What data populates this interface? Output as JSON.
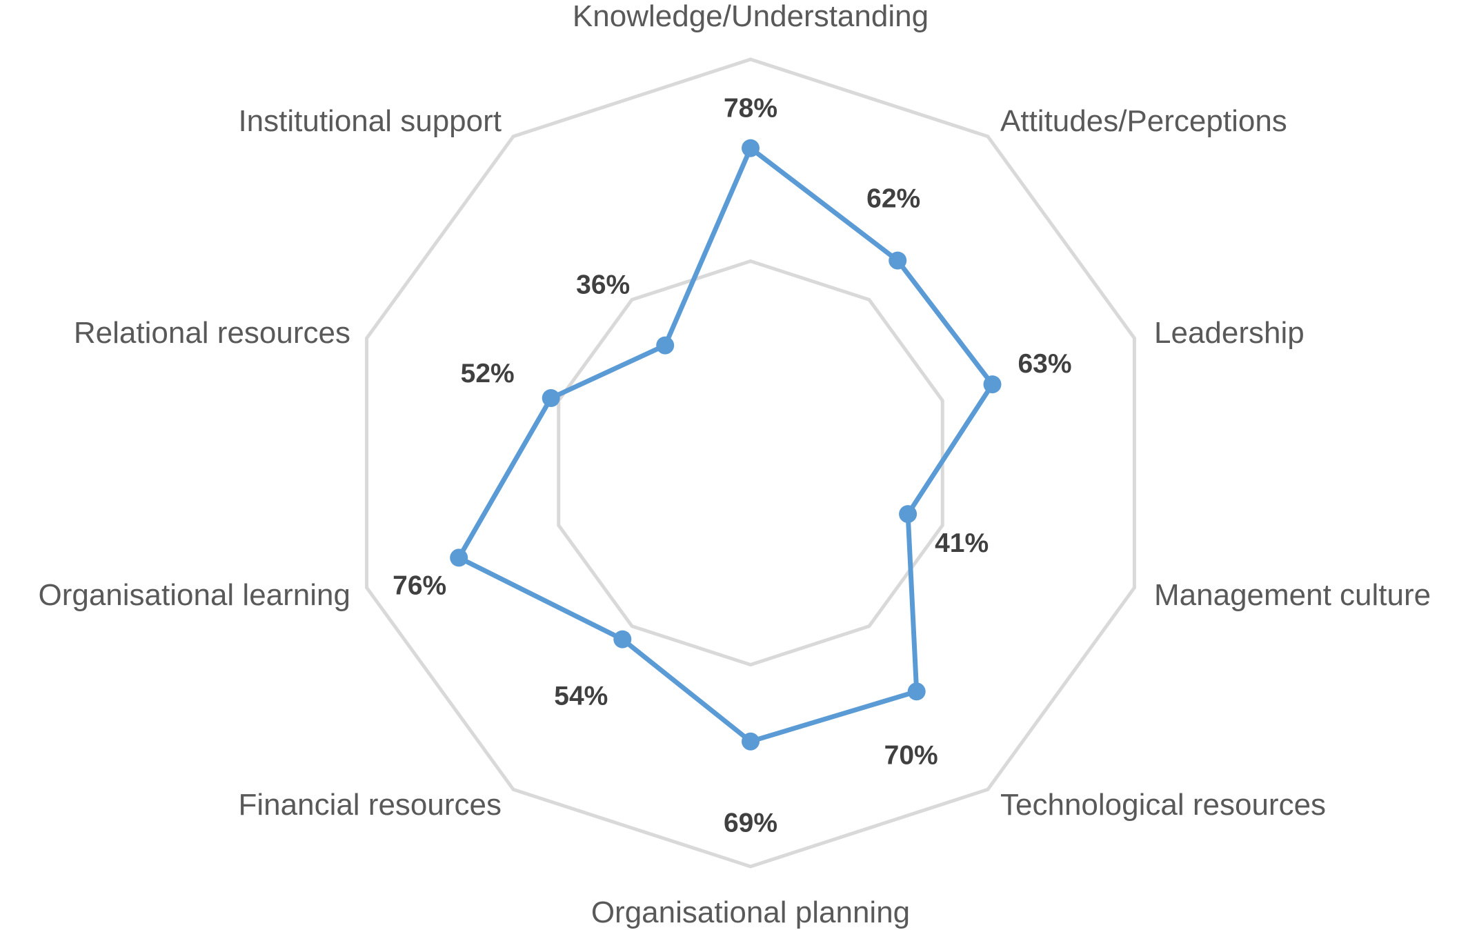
{
  "chart_data": {
    "type": "radar",
    "categories": [
      "Knowledge/Understanding",
      "Attitudes/Perceptions",
      "Leadership",
      "Management culture",
      "Technological resources",
      "Organisational planning",
      "Financial resources",
      "Organisational learning",
      "Relational resources",
      "Institutional support"
    ],
    "series": [
      {
        "values": [
          78,
          62,
          63,
          41,
          70,
          69,
          54,
          76,
          52,
          36
        ],
        "data_labels": [
          "78%",
          "62%",
          "63%",
          "41%",
          "70%",
          "69%",
          "54%",
          "76%",
          "52%",
          "36%"
        ]
      }
    ],
    "range": [
      0,
      100
    ],
    "grid_rings": [
      50,
      100
    ],
    "grid": true,
    "legend": "none",
    "colors": {
      "series": "#5b9bd5",
      "grid": "#d9d9d9",
      "category_text": "#595959",
      "value_text": "#404040"
    }
  }
}
